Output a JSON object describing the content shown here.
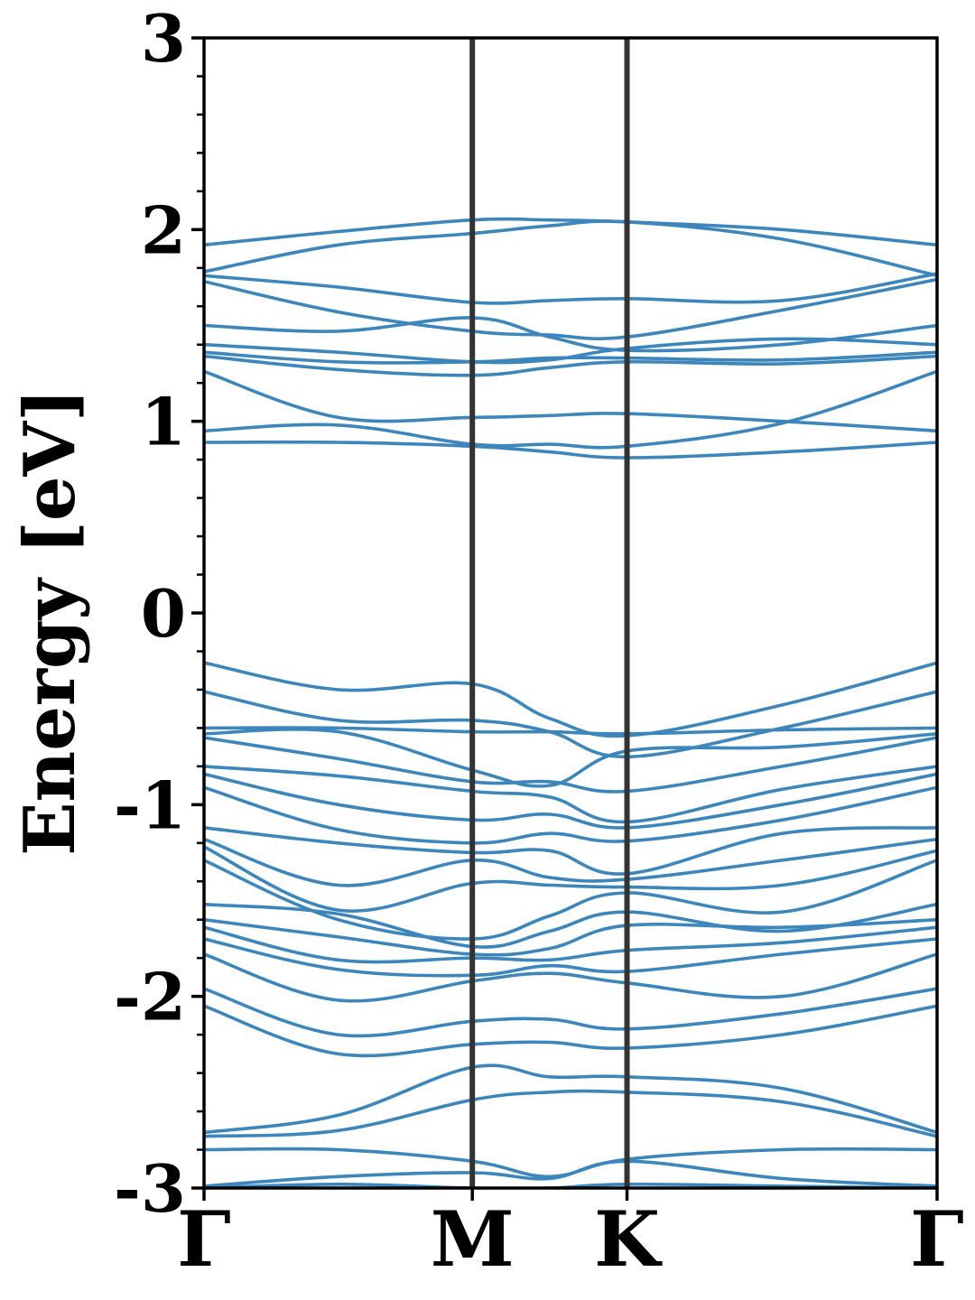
{
  "chart_data": {
    "type": "line",
    "title": "",
    "xlabel": "",
    "ylabel": "Energy [eV]",
    "ylim": [
      -3,
      3
    ],
    "xlim": [
      0,
      1
    ],
    "y_ticks": [
      "-3",
      "-2",
      "-1",
      "0",
      "1",
      "2",
      "3"
    ],
    "y_tick_values": [
      -3,
      -2,
      -1,
      0,
      1,
      2,
      3
    ],
    "minor_tick_step": 0.2,
    "k_points": [
      {
        "label": "Γ",
        "x": 0.0
      },
      {
        "label": "M",
        "x": 0.366
      },
      {
        "label": "K",
        "x": 0.577
      },
      {
        "label": "Γ",
        "x": 1.0
      }
    ],
    "band_color": "#3d86bb",
    "kpath_line_color": "#333333",
    "grid": false,
    "x": [
      0,
      0.183,
      0.366,
      0.4715,
      0.577,
      0.7885,
      1.0
    ],
    "series": [
      {
        "values": [
          1.92,
          1.99,
          2.05,
          2.05,
          2.04,
          2.0,
          1.92
        ]
      },
      {
        "values": [
          1.78,
          1.92,
          1.98,
          2.02,
          2.04,
          1.95,
          1.76
        ]
      },
      {
        "values": [
          1.76,
          1.7,
          1.62,
          1.63,
          1.64,
          1.63,
          1.77
        ]
      },
      {
        "values": [
          1.73,
          1.57,
          1.47,
          1.45,
          1.44,
          1.58,
          1.74
        ]
      },
      {
        "values": [
          1.5,
          1.47,
          1.54,
          1.44,
          1.37,
          1.4,
          1.5
        ]
      },
      {
        "values": [
          1.4,
          1.36,
          1.31,
          1.32,
          1.38,
          1.43,
          1.4
        ]
      },
      {
        "values": [
          1.36,
          1.31,
          1.31,
          1.33,
          1.33,
          1.32,
          1.36
        ]
      },
      {
        "values": [
          1.34,
          1.27,
          1.24,
          1.28,
          1.31,
          1.3,
          1.34
        ]
      },
      {
        "values": [
          1.26,
          1.02,
          1.02,
          1.03,
          1.04,
          1.0,
          0.95
        ]
      },
      {
        "values": [
          0.95,
          0.98,
          0.88,
          0.88,
          0.87,
          0.99,
          1.26
        ]
      },
      {
        "values": [
          0.89,
          0.89,
          0.87,
          0.84,
          0.81,
          0.84,
          0.89
        ]
      },
      {
        "values": [
          -0.26,
          -0.4,
          -0.37,
          -0.55,
          -0.64,
          -0.48,
          -0.26
        ]
      },
      {
        "values": [
          -0.41,
          -0.56,
          -0.56,
          -0.62,
          -0.75,
          -0.6,
          -0.41
        ]
      },
      {
        "values": [
          -0.6,
          -0.6,
          -0.62,
          -0.62,
          -0.63,
          -0.61,
          -0.6
        ]
      },
      {
        "values": [
          -0.63,
          -0.62,
          -0.82,
          -0.9,
          -0.72,
          -0.7,
          -0.63
        ]
      },
      {
        "values": [
          -0.65,
          -0.76,
          -0.88,
          -0.88,
          -0.93,
          -0.8,
          -0.65
        ]
      },
      {
        "values": [
          -0.8,
          -0.85,
          -0.93,
          -0.96,
          -1.09,
          -0.92,
          -0.8
        ]
      },
      {
        "values": [
          -0.84,
          -1.0,
          -1.08,
          -1.05,
          -1.12,
          -1.0,
          -0.84
        ]
      },
      {
        "values": [
          -0.91,
          -1.13,
          -1.2,
          -1.15,
          -1.19,
          -1.08,
          -0.91
        ]
      },
      {
        "values": [
          -1.12,
          -1.2,
          -1.25,
          -1.24,
          -1.36,
          -1.15,
          -1.12
        ]
      },
      {
        "values": [
          -1.18,
          -1.42,
          -1.29,
          -1.38,
          -1.39,
          -1.29,
          -1.18
        ]
      },
      {
        "values": [
          -1.22,
          -1.55,
          -1.41,
          -1.42,
          -1.43,
          -1.42,
          -1.24
        ]
      },
      {
        "values": [
          -1.29,
          -1.6,
          -1.7,
          -1.58,
          -1.46,
          -1.56,
          -1.29
        ]
      },
      {
        "values": [
          -1.52,
          -1.57,
          -1.74,
          -1.66,
          -1.56,
          -1.66,
          -1.52
        ]
      },
      {
        "values": [
          -1.6,
          -1.69,
          -1.78,
          -1.75,
          -1.63,
          -1.64,
          -1.6
        ]
      },
      {
        "values": [
          -1.64,
          -1.81,
          -1.8,
          -1.81,
          -1.76,
          -1.72,
          -1.64
        ]
      },
      {
        "values": [
          -1.7,
          -1.86,
          -1.89,
          -1.84,
          -1.87,
          -1.78,
          -1.7
        ]
      },
      {
        "values": [
          -1.78,
          -2.02,
          -1.92,
          -1.88,
          -1.93,
          -2.0,
          -1.78
        ]
      },
      {
        "values": [
          -1.96,
          -2.2,
          -2.13,
          -2.12,
          -2.17,
          -2.09,
          -1.96
        ]
      },
      {
        "values": [
          -2.05,
          -2.3,
          -2.25,
          -2.24,
          -2.27,
          -2.2,
          -2.05
        ]
      },
      {
        "values": [
          -2.71,
          -2.62,
          -2.37,
          -2.42,
          -2.42,
          -2.48,
          -2.71
        ]
      },
      {
        "values": [
          -2.73,
          -2.7,
          -2.54,
          -2.5,
          -2.5,
          -2.55,
          -2.73
        ]
      },
      {
        "values": [
          -2.8,
          -2.8,
          -2.86,
          -2.94,
          -2.85,
          -2.8,
          -2.8
        ]
      },
      {
        "values": [
          -2.99,
          -2.94,
          -2.92,
          -2.95,
          -2.86,
          -2.95,
          -2.99
        ]
      },
      {
        "values": [
          -3.0,
          -2.98,
          -3.0,
          -3.0,
          -2.98,
          -2.99,
          -3.0
        ]
      }
    ]
  }
}
